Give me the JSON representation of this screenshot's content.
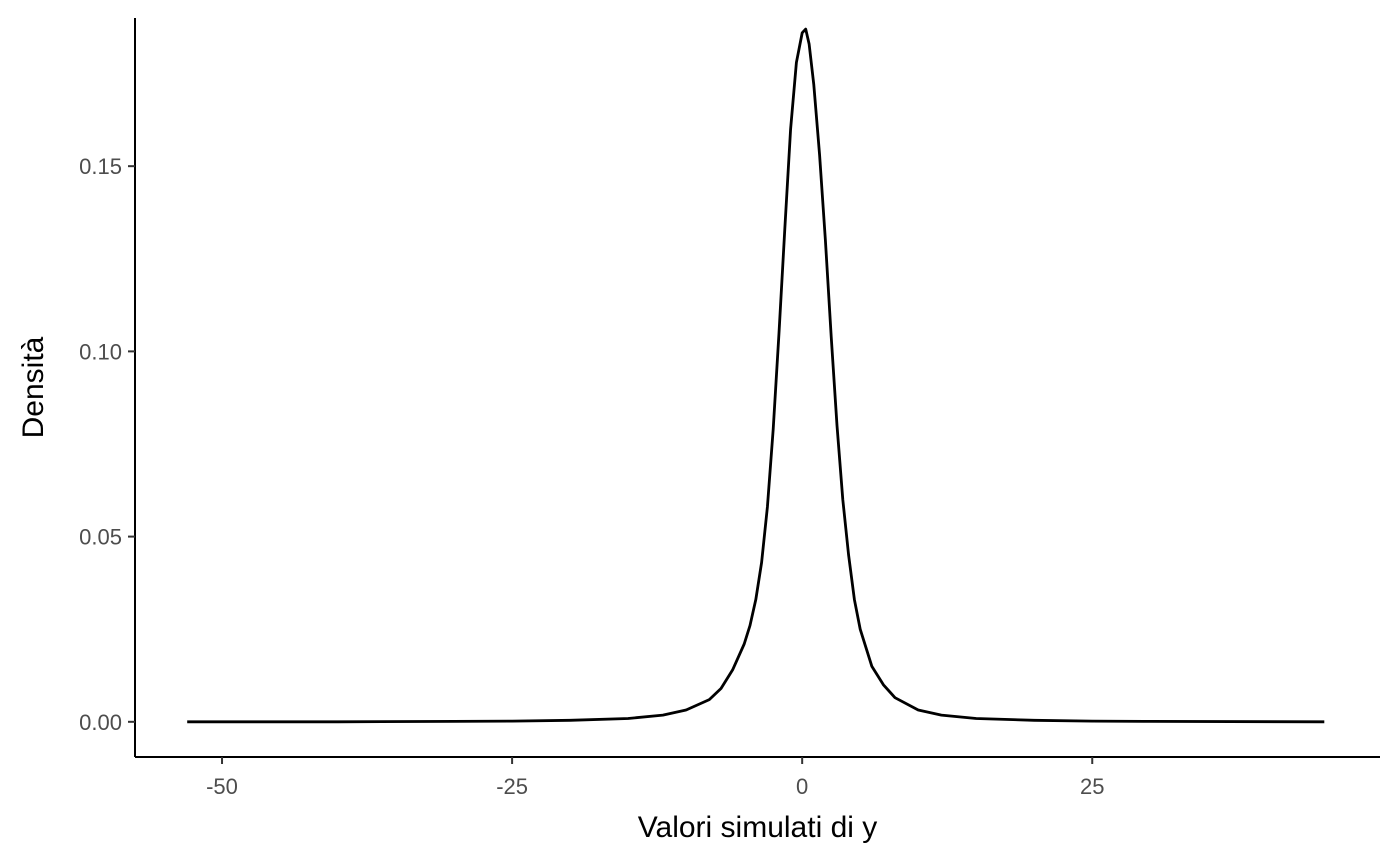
{
  "chart_data": {
    "type": "line",
    "title": "",
    "xlabel": "Valori simulati di y",
    "ylabel": "Densità",
    "xlim": [
      -57.5,
      49.8
    ],
    "ylim": [
      -0.0095,
      0.19
    ],
    "x_ticks": [
      -50,
      -25,
      0,
      25
    ],
    "x_tick_labels": [
      "-50",
      "-25",
      "0",
      "25"
    ],
    "y_ticks": [
      0.0,
      0.05,
      0.1,
      0.15
    ],
    "y_tick_labels": [
      "0.00",
      "0.05",
      "0.10",
      "0.15"
    ],
    "grid": false,
    "legend": "none",
    "line_color": "#000000",
    "series": [
      {
        "x": [
          -53.0,
          -40.0,
          -30.0,
          -25.0,
          -20.0,
          -15.0,
          -12.0,
          -10.0,
          -8.0,
          -7.0,
          -6.0,
          -5.0,
          -4.5,
          -4.0,
          -3.5,
          -3.0,
          -2.5,
          -2.0,
          -1.5,
          -1.0,
          -0.5,
          0.0,
          0.3,
          0.6,
          1.0,
          1.5,
          2.0,
          2.5,
          3.0,
          3.5,
          4.0,
          4.5,
          5.0,
          6.0,
          7.0,
          8.0,
          10.0,
          12.0,
          15.0,
          20.0,
          25.0,
          30.0,
          45.0
        ],
        "y": [
          0.0,
          0.0,
          0.0001,
          0.0002,
          0.0004,
          0.0009,
          0.0018,
          0.0032,
          0.006,
          0.009,
          0.014,
          0.021,
          0.026,
          0.033,
          0.043,
          0.058,
          0.079,
          0.105,
          0.133,
          0.16,
          0.178,
          0.186,
          0.187,
          0.183,
          0.172,
          0.153,
          0.13,
          0.104,
          0.08,
          0.06,
          0.045,
          0.033,
          0.025,
          0.015,
          0.01,
          0.0065,
          0.0032,
          0.0018,
          0.0009,
          0.0004,
          0.0002,
          0.0001,
          0.0
        ]
      }
    ]
  }
}
